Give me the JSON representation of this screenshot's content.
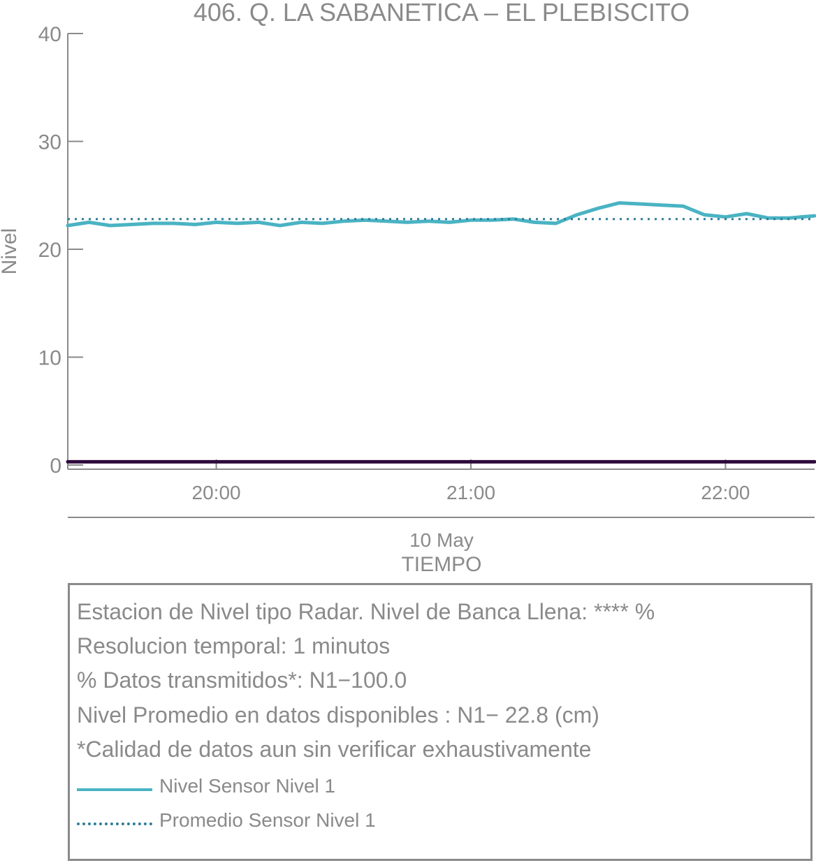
{
  "chart_data": {
    "type": "line",
    "title": "406. Q. LA SABANETICA – EL PLEBISCITO",
    "xlabel": "TIEMPO",
    "x_date_label": "10 May",
    "ylabel": "Nivel",
    "ylim": [
      0,
      40
    ],
    "xlim": [
      "19:25",
      "22:21"
    ],
    "y_ticks": [
      "0",
      "10",
      "20",
      "30",
      "40"
    ],
    "x_ticks": [
      {
        "label": "20:00",
        "at": "20:00"
      },
      {
        "label": "21:00",
        "at": "21:00"
      },
      {
        "label": "22:00",
        "at": "22:00"
      }
    ],
    "grid": false,
    "series": [
      {
        "name": "Nivel Sensor Nivel 1",
        "style": "solid",
        "color": "#4ab3c3",
        "x": [
          "19:25",
          "19:30",
          "19:35",
          "19:40",
          "19:45",
          "19:50",
          "19:55",
          "20:00",
          "20:05",
          "20:10",
          "20:15",
          "20:20",
          "20:25",
          "20:30",
          "20:35",
          "20:40",
          "20:45",
          "20:50",
          "20:55",
          "21:00",
          "21:05",
          "21:10",
          "21:15",
          "21:20",
          "21:25",
          "21:30",
          "21:35",
          "21:40",
          "21:45",
          "21:50",
          "21:55",
          "22:00",
          "22:05",
          "22:10",
          "22:15",
          "22:21"
        ],
        "values": [
          22.2,
          22.5,
          22.2,
          22.3,
          22.4,
          22.4,
          22.3,
          22.5,
          22.4,
          22.5,
          22.2,
          22.5,
          22.4,
          22.6,
          22.7,
          22.6,
          22.5,
          22.6,
          22.5,
          22.7,
          22.7,
          22.8,
          22.5,
          22.4,
          23.2,
          23.8,
          24.3,
          24.2,
          24.1,
          24.0,
          23.2,
          23.0,
          23.3,
          22.9,
          22.9,
          23.1
        ]
      },
      {
        "name": "Promedio Sensor Nivel 1",
        "style": "dotted",
        "color": "#2e7d9a",
        "x": [
          "19:25",
          "22:21"
        ],
        "values": [
          22.8,
          22.8
        ]
      },
      {
        "style": "solid",
        "color": "#2e0a3c",
        "x": [
          "19:25",
          "22:21"
        ],
        "values": [
          0.3,
          0.3
        ]
      }
    ]
  },
  "info": {
    "lines": [
      "Estacion de Nivel tipo Radar. Nivel de Banca Llena: **** %",
      "Resolucion temporal: 1 minutos",
      "% Datos transmitidos*: N1−100.0",
      "Nivel Promedio en datos disponibles : N1− 22.8 (cm)",
      "*Calidad de datos aun sin verificar exhaustivamente"
    ],
    "legend": [
      {
        "label": "Nivel Sensor Nivel 1",
        "style": "solid",
        "color": "#4ab3c3"
      },
      {
        "label": "Promedio Sensor Nivel 1",
        "style": "dotted",
        "color": "#2e7d9a"
      }
    ]
  }
}
